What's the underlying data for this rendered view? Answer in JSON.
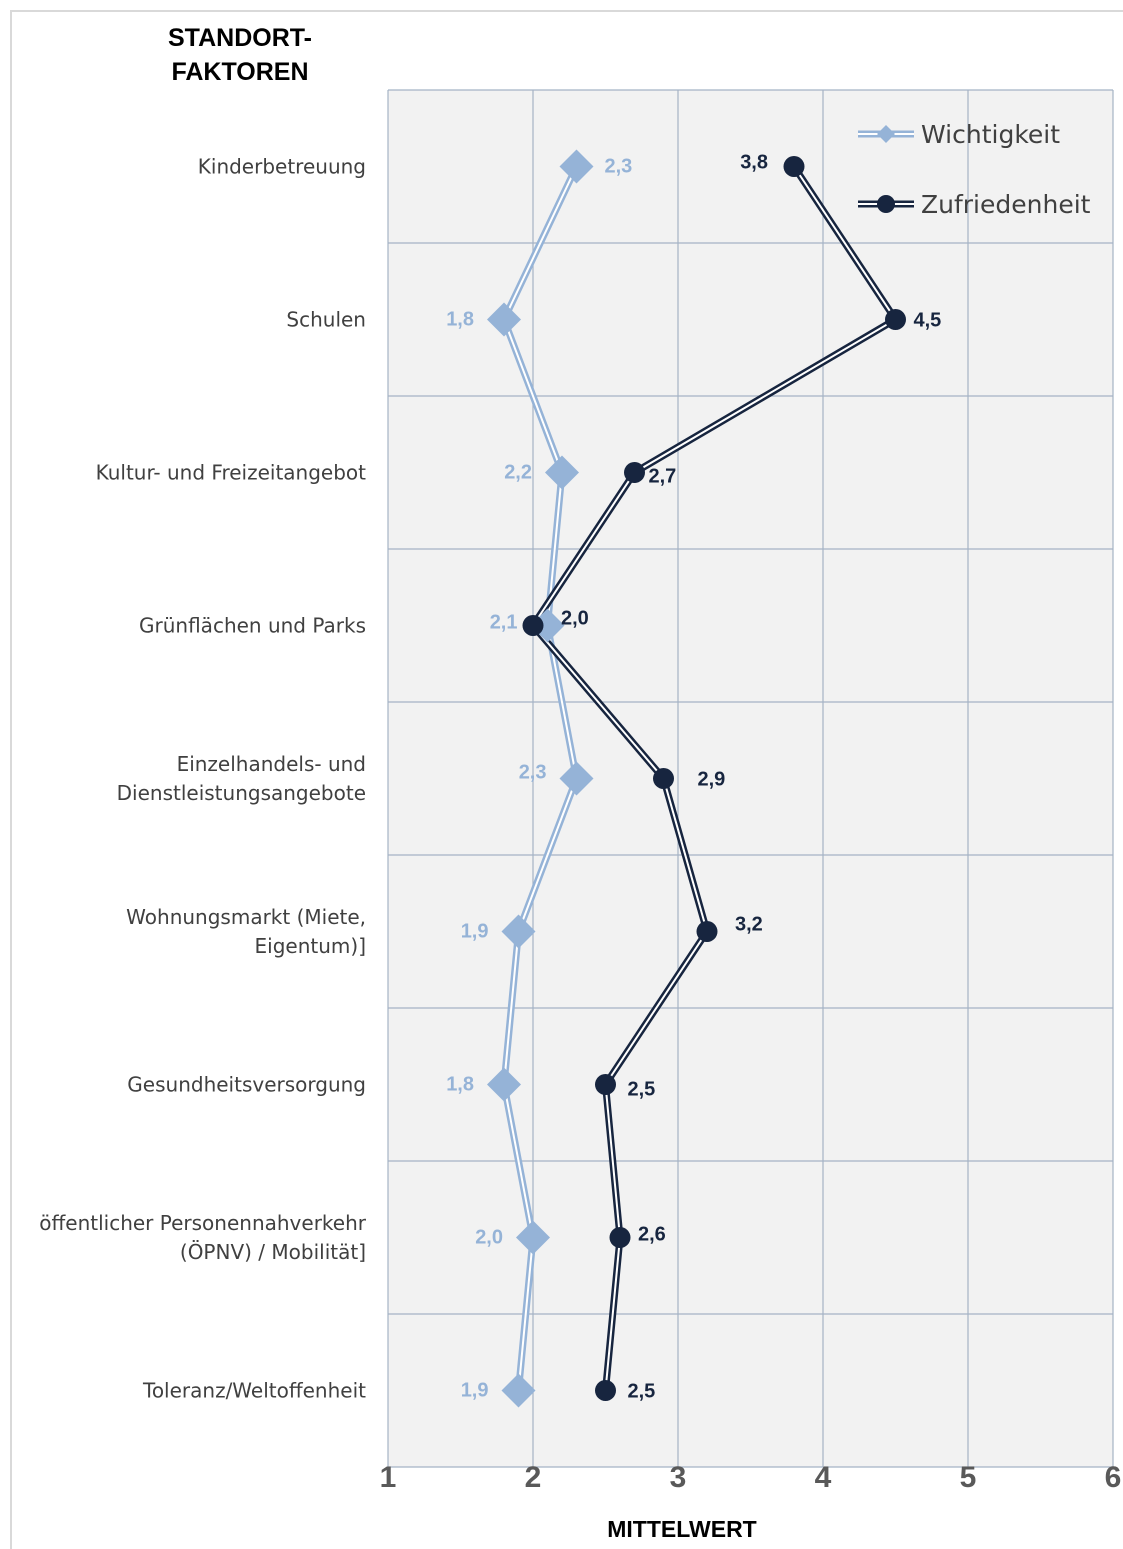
{
  "colors": {
    "wichtigkeit": "#95b3d7",
    "zufriedenheit": "#17253f",
    "plot_bg": "#f2f2f2",
    "grid": "#a5b3c5"
  },
  "chart_data": {
    "type": "line",
    "orientation": "horizontal",
    "y_axis_title_lines": [
      "STANDORT-",
      "FAKTOREN"
    ],
    "xlabel": "MITTELWERT",
    "xlim": [
      1,
      6
    ],
    "x_ticks": [
      "1",
      "2",
      "3",
      "4",
      "5",
      "6"
    ],
    "grid": true,
    "legend_position": "top-right",
    "categories": [
      [
        "Kinderbetreuung"
      ],
      [
        "Schulen"
      ],
      [
        "Kultur- und Freizeitangebot"
      ],
      [
        "Grünflächen und Parks"
      ],
      [
        "Einzelhandels- und",
        "Dienstleistungsangebote"
      ],
      [
        "Wohnungsmarkt (Miete,",
        "Eigentum)]"
      ],
      [
        "Gesundheitsversorgung"
      ],
      [
        "öffentlicher Personennahverkehr",
        "(ÖPNV) / Mobilität]"
      ],
      [
        "Toleranz/Weltoffenheit"
      ]
    ],
    "series": [
      {
        "name": "Wichtigkeit",
        "marker": "diamond",
        "values": [
          2.3,
          1.8,
          2.2,
          2.1,
          2.3,
          1.9,
          1.8,
          2.0,
          1.9
        ],
        "labels": [
          "2,3",
          "1,8",
          "2,2",
          "2,1",
          "2,3",
          "1,9",
          "1,8",
          "2,0",
          "1,9"
        ]
      },
      {
        "name": "Zufriedenheit",
        "marker": "circle",
        "values": [
          3.8,
          4.5,
          2.7,
          2.0,
          2.9,
          3.2,
          2.5,
          2.6,
          2.5
        ],
        "labels": [
          "3,8",
          "4,5",
          "2,7",
          "2,0",
          "2,9",
          "3,2",
          "2,5",
          "2,6",
          "2,5"
        ]
      }
    ]
  }
}
